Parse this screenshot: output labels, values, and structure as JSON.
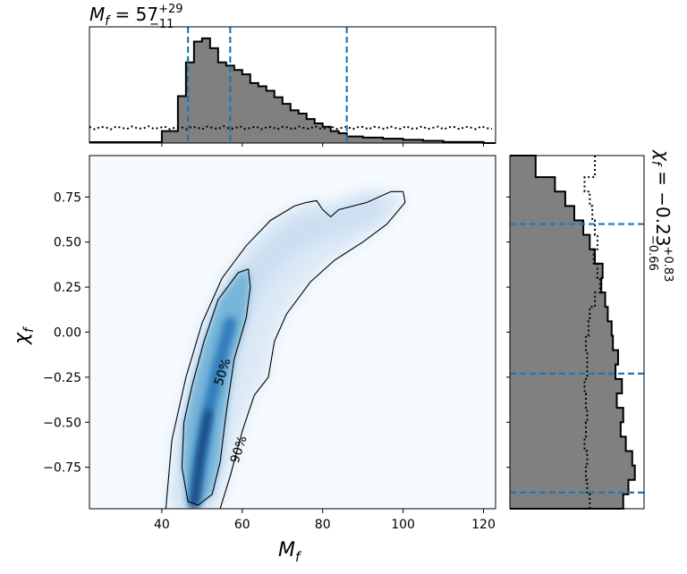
{
  "chart_data": [
    {
      "type": "heatmap",
      "panel": "joint",
      "xlabel_main": "M",
      "xlabel_sub": "f",
      "ylabel_main": "χ",
      "ylabel_sub": "f",
      "xlim": [
        22,
        123
      ],
      "ylim": [
        -0.98,
        0.98
      ],
      "xticks": [
        40,
        60,
        80,
        100,
        120
      ],
      "yticks": [
        0.75,
        0.5,
        0.25,
        0.0,
        -0.25,
        -0.5,
        -0.75
      ],
      "ytick_labels": [
        "0.75",
        "0.50",
        "0.25",
        "0.00",
        "−0.25",
        "−0.50",
        "−0.75"
      ],
      "colormap": [
        "#f7fbff",
        "#c6dbef",
        "#6baed6",
        "#2171b5",
        "#08306b"
      ],
      "contour_labels": [
        {
          "text": "50%",
          "x": 55,
          "y": -0.22,
          "angle": -72
        },
        {
          "text": "90%",
          "x": 59,
          "y": -0.65,
          "angle": -72
        }
      ],
      "contour_50": [
        [
          46.5,
          -0.94
        ],
        [
          45,
          -0.75
        ],
        [
          45.5,
          -0.5
        ],
        [
          47.5,
          -0.3
        ],
        [
          50.5,
          -0.05
        ],
        [
          54,
          0.18
        ],
        [
          59,
          0.33
        ],
        [
          61.5,
          0.35
        ],
        [
          62,
          0.25
        ],
        [
          61,
          0.08
        ],
        [
          58,
          -0.15
        ],
        [
          56,
          -0.45
        ],
        [
          54.5,
          -0.72
        ],
        [
          52.5,
          -0.9
        ],
        [
          49,
          -0.96
        ],
        [
          46.5,
          -0.94
        ]
      ],
      "contour_90": [
        [
          41,
          -0.98
        ],
        [
          42.5,
          -0.6
        ],
        [
          46,
          -0.25
        ],
        [
          50,
          0.05
        ],
        [
          55,
          0.3
        ],
        [
          61,
          0.48
        ],
        [
          67,
          0.62
        ],
        [
          73,
          0.7
        ],
        [
          76,
          0.72
        ],
        [
          78.5,
          0.73
        ],
        [
          80,
          0.68
        ],
        [
          82,
          0.64
        ],
        [
          84,
          0.68
        ],
        [
          91,
          0.72
        ],
        [
          97,
          0.78
        ],
        [
          100,
          0.78
        ],
        [
          100.5,
          0.72
        ],
        [
          96,
          0.6
        ],
        [
          90,
          0.5
        ],
        [
          83,
          0.4
        ],
        [
          77,
          0.28
        ],
        [
          71,
          0.1
        ],
        [
          68,
          -0.05
        ],
        [
          66.5,
          -0.25
        ],
        [
          63,
          -0.35
        ],
        [
          60,
          -0.55
        ],
        [
          57,
          -0.8
        ],
        [
          54.5,
          -0.98
        ]
      ],
      "density_ridge": [
        [
          48,
          -0.95
        ],
        [
          49.5,
          -0.7
        ],
        [
          51.5,
          -0.45
        ],
        [
          54,
          -0.2
        ],
        [
          57,
          0.05
        ],
        [
          61,
          0.25
        ],
        [
          67,
          0.42
        ],
        [
          74,
          0.55
        ],
        [
          82,
          0.62
        ],
        [
          92,
          0.7
        ]
      ]
    },
    {
      "type": "bar",
      "panel": "marginal-top",
      "title_main": "M",
      "title_sub": "f",
      "title_value": " = 57",
      "title_sup": "+29",
      "title_inf": "−11",
      "bin_edges": [
        40,
        44,
        46,
        48,
        50,
        52,
        54,
        56,
        58,
        60,
        62,
        64,
        66,
        68,
        70,
        72,
        74,
        76,
        78,
        80,
        82,
        84,
        86,
        90,
        95,
        100,
        105,
        110,
        115,
        120
      ],
      "histogram": [
        0.11,
        0.43,
        0.74,
        0.93,
        0.96,
        0.87,
        0.74,
        0.71,
        0.67,
        0.63,
        0.55,
        0.52,
        0.48,
        0.42,
        0.36,
        0.3,
        0.27,
        0.22,
        0.18,
        0.15,
        0.11,
        0.09,
        0.06,
        0.05,
        0.04,
        0.03,
        0.02,
        0.01,
        0.01
      ],
      "prior_level": 0.14,
      "credible_interval": [
        46.5,
        57,
        86
      ]
    },
    {
      "type": "bar",
      "panel": "marginal-right",
      "title_main": "χ",
      "title_sub": "f",
      "title_value": " = −0.23",
      "title_sup": "+0.83",
      "title_inf": "−0.66",
      "bin_edges": [
        -0.98,
        -0.9,
        -0.82,
        -0.74,
        -0.66,
        -0.58,
        -0.5,
        -0.42,
        -0.34,
        -0.26,
        -0.18,
        -0.1,
        -0.02,
        0.06,
        0.14,
        0.22,
        0.3,
        0.38,
        0.46,
        0.54,
        0.62,
        0.7,
        0.78,
        0.86,
        0.98
      ],
      "histogram": [
        0.88,
        0.92,
        0.97,
        0.95,
        0.9,
        0.86,
        0.88,
        0.83,
        0.87,
        0.82,
        0.84,
        0.8,
        0.79,
        0.76,
        0.74,
        0.71,
        0.72,
        0.66,
        0.62,
        0.57,
        0.5,
        0.43,
        0.35,
        0.2
      ],
      "prior": [
        0.62,
        0.6,
        0.59,
        0.6,
        0.58,
        0.59,
        0.6,
        0.59,
        0.58,
        0.6,
        0.6,
        0.59,
        0.61,
        0.62,
        0.66,
        0.7,
        0.68,
        0.65,
        0.68,
        0.66,
        0.64,
        0.62,
        0.58,
        0.66
      ],
      "credible_interval": [
        -0.89,
        -0.23,
        0.6
      ]
    }
  ],
  "colors": {
    "histogram_fill": "#808080",
    "interval_line": "#1f77b4",
    "outline": "#000000"
  }
}
